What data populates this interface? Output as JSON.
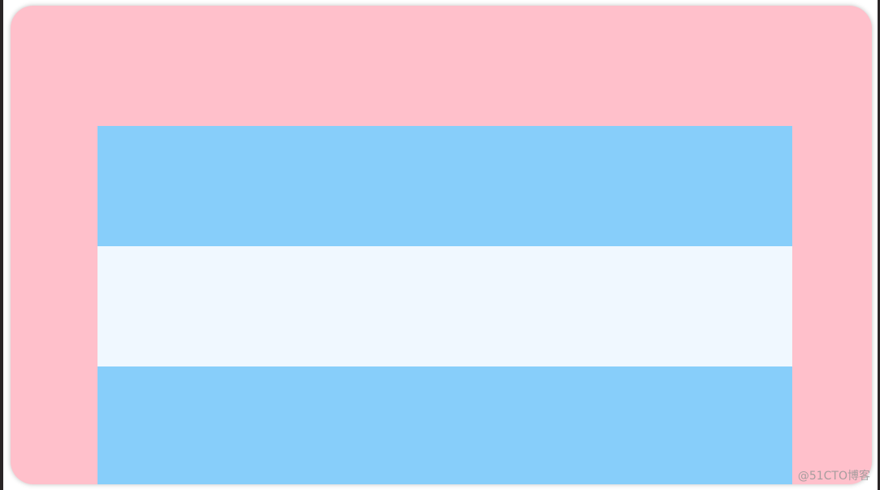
{
  "colors": {
    "card": "#FFC0CB",
    "blue": "#87CEFA",
    "light": "#F0F8FF"
  },
  "rows": [
    {
      "color": "#87CEFA"
    },
    {
      "color": "#F0F8FF"
    },
    {
      "color": "#87CEFA"
    }
  ],
  "watermark": "@51CTO博客"
}
